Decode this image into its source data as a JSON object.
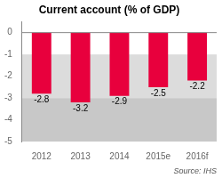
{
  "chart_data": {
    "type": "bar",
    "title": "Current account (% of GDP)",
    "categories": [
      "2012",
      "2013",
      "2014",
      "2015e",
      "2016f"
    ],
    "values": [
      -2.8,
      -3.2,
      -2.9,
      -2.5,
      -2.2
    ],
    "color": "#e8003d",
    "ylim": [
      -5,
      0.5
    ],
    "yticks": [
      0,
      -1,
      -2,
      -3,
      -4,
      -5
    ],
    "grid": false,
    "data_labels": true,
    "bands": [
      {
        "from": -1,
        "to": -3,
        "color": "#dcdcdc"
      },
      {
        "from": -3,
        "to": -5,
        "color": "#c8c8c8"
      }
    ],
    "source": "Source: IHS"
  }
}
